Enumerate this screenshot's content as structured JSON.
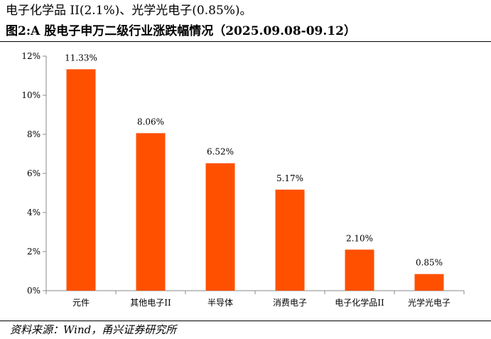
{
  "intro_text": "电子化学品 II(2.1%)、光学光电子(0.85%)。",
  "caption": "图2:A 股电子申万二级行业涨跌幅情况（2025.09.08-09.12）",
  "source": "资料来源：Wind，甬兴证券研究所",
  "colors": {
    "bar": "#FF5000",
    "axis": "#888888"
  },
  "chart_data": {
    "type": "bar",
    "title": "",
    "xlabel": "",
    "ylabel": "",
    "categories": [
      "元件",
      "其他电子II",
      "半导体",
      "消费电子",
      "电子化学品II",
      "光学光电子"
    ],
    "values": [
      11.33,
      8.06,
      6.52,
      5.17,
      2.1,
      0.85
    ],
    "value_labels": [
      "11.33%",
      "8.06%",
      "6.52%",
      "5.17%",
      "2.10%",
      "0.85%"
    ],
    "yticks": [
      "0%",
      "2%",
      "4%",
      "6%",
      "8%",
      "10%",
      "12%"
    ],
    "ylim": [
      0,
      12
    ],
    "grid": false,
    "legend": "none"
  }
}
